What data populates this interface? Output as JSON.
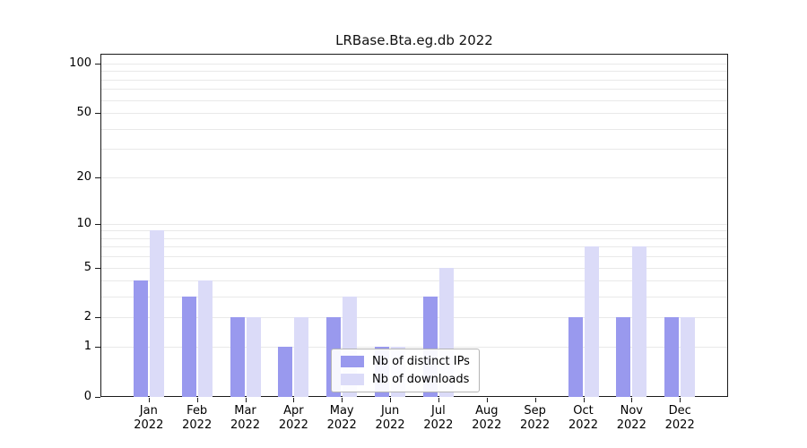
{
  "chart_data": {
    "type": "bar",
    "title": "LRBase.Bta.eg.db 2022",
    "xlabel": "",
    "ylabel": "",
    "year": "2022",
    "categories": [
      "Jan",
      "Feb",
      "Mar",
      "Apr",
      "May",
      "Jun",
      "Jul",
      "Aug",
      "Sep",
      "Oct",
      "Nov",
      "Dec"
    ],
    "series": [
      {
        "name": "Nb of distinct IPs",
        "color": "#9999ee",
        "values": [
          4,
          3,
          2,
          1,
          2,
          1,
          3,
          0,
          0,
          2,
          2,
          2
        ]
      },
      {
        "name": "Nb of downloads",
        "color": "#dbdbf8",
        "values": [
          9,
          4,
          2,
          2,
          3,
          1,
          5,
          0,
          0,
          7,
          7,
          2
        ]
      }
    ],
    "yticks": [
      0,
      1,
      2,
      5,
      10,
      20,
      50,
      100
    ],
    "gridline_values": [
      1,
      2,
      3,
      4,
      5,
      6,
      7,
      8,
      9,
      10,
      20,
      30,
      40,
      50,
      60,
      70,
      80,
      90,
      100
    ],
    "ylim": [
      0,
      100
    ],
    "scale": "log10(1+v)",
    "grid": "horizontal",
    "legend_position": "lower center"
  }
}
